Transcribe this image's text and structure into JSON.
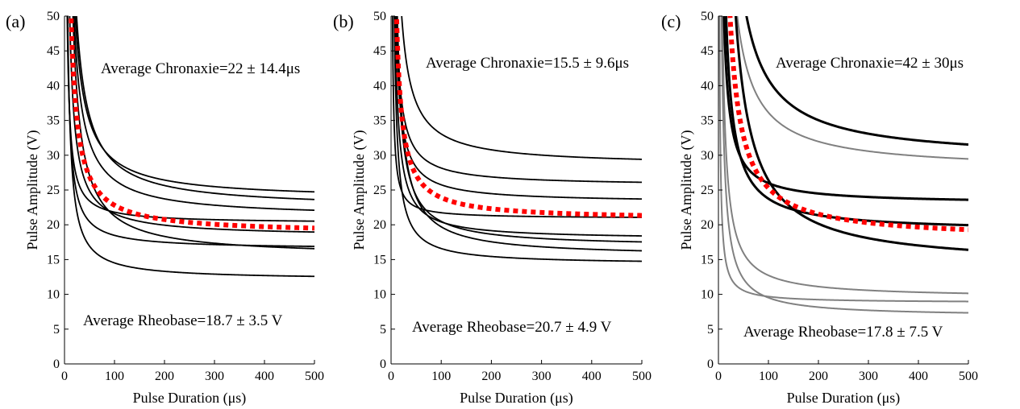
{
  "chart_data": [
    {
      "type": "line",
      "panel_label": "(a)",
      "xlabel": "Pulse Duration (μs)",
      "ylabel": "Pulse Amplitude (V)",
      "xlim": [
        0,
        500
      ],
      "ylim": [
        0,
        50
      ],
      "xticks": [
        0,
        100,
        200,
        300,
        400,
        500
      ],
      "yticks": [
        0,
        5,
        10,
        15,
        20,
        25,
        30,
        35,
        40,
        45,
        50
      ],
      "grid": false,
      "annotations": {
        "chronaxie": "Average Chronaxie=22 ± 14.4μs",
        "rheobase": "Average Rheobase=18.7 ± 3.5 V"
      },
      "series": [
        {
          "style": "thin-black",
          "rheobase": 23.6,
          "chronaxie": 24
        },
        {
          "style": "thin-black",
          "rheobase": 22.3,
          "chronaxie": 30
        },
        {
          "style": "thin-black",
          "rheobase": 21.0,
          "chronaxie": 26
        },
        {
          "style": "thin-black",
          "rheobase": 20.2,
          "chronaxie": 8
        },
        {
          "style": "thin-black",
          "rheobase": 18.3,
          "chronaxie": 18
        },
        {
          "style": "thin-black",
          "rheobase": 16.5,
          "chronaxie": 12
        },
        {
          "style": "thin-black",
          "rheobase": 15.4,
          "chronaxie": 38
        },
        {
          "style": "thin-black",
          "rheobase": 12.1,
          "chronaxie": 20
        },
        {
          "style": "red-dotted",
          "rheobase": 18.7,
          "chronaxie": 22
        }
      ]
    },
    {
      "type": "line",
      "panel_label": "(b)",
      "xlabel": "Pulse Duration (μs)",
      "ylabel": "Pulse Amplitude (V)",
      "xlim": [
        0,
        500
      ],
      "ylim": [
        0,
        50
      ],
      "xticks": [
        0,
        100,
        200,
        300,
        400,
        500
      ],
      "yticks": [
        0,
        5,
        10,
        15,
        20,
        25,
        30,
        35,
        40,
        45,
        50
      ],
      "grid": false,
      "annotations": {
        "chronaxie": "Average Chronaxie=15.5 ± 9.6μs",
        "rheobase": "Average Rheobase=20.7 ± 4.9 V"
      },
      "series": [
        {
          "style": "thin-black",
          "rheobase": 28.5,
          "chronaxie": 16
        },
        {
          "style": "thin-black",
          "rheobase": 25.6,
          "chronaxie": 10
        },
        {
          "style": "thin-black",
          "rheobase": 23.2,
          "chronaxie": 11
        },
        {
          "style": "thin-black",
          "rheobase": 20.9,
          "chronaxie": 4
        },
        {
          "style": "thin-black",
          "rheobase": 17.9,
          "chronaxie": 14
        },
        {
          "style": "thin-black",
          "rheobase": 16.8,
          "chronaxie": 22
        },
        {
          "style": "thin-black",
          "rheobase": 15.4,
          "chronaxie": 28
        },
        {
          "style": "thin-black",
          "rheobase": 14.3,
          "chronaxie": 16
        },
        {
          "style": "red-dotted",
          "rheobase": 20.7,
          "chronaxie": 15.5
        }
      ]
    },
    {
      "type": "line",
      "panel_label": "(c)",
      "xlabel": "Pulse Duration (μs)",
      "ylabel": "Pulse Amplitude (V)",
      "xlim": [
        0,
        500
      ],
      "ylim": [
        0,
        50
      ],
      "xticks": [
        0,
        100,
        200,
        300,
        400,
        500
      ],
      "yticks": [
        0,
        5,
        10,
        15,
        20,
        25,
        30,
        35,
        40,
        45,
        50
      ],
      "grid": false,
      "annotations": {
        "chronaxie": "Average Chronaxie=42 ± 30μs",
        "rheobase": "Average Rheobase=17.8 ± 7.5 V"
      },
      "series": [
        {
          "style": "gray",
          "rheobase": 27.8,
          "chronaxie": 30
        },
        {
          "style": "gray",
          "rheobase": 9.5,
          "chronaxie": 34
        },
        {
          "style": "gray",
          "rheobase": 8.8,
          "chronaxie": 10
        },
        {
          "style": "gray",
          "rheobase": 6.8,
          "chronaxie": 40
        },
        {
          "style": "thick-black",
          "rheobase": 29.2,
          "chronaxie": 40
        },
        {
          "style": "thick-black",
          "rheobase": 23.0,
          "chronaxie": 13
        },
        {
          "style": "thick-black",
          "rheobase": 19.0,
          "chronaxie": 25
        },
        {
          "style": "thick-black",
          "rheobase": 13.9,
          "chronaxie": 90
        },
        {
          "style": "red-dotted",
          "rheobase": 17.8,
          "chronaxie": 42
        }
      ]
    }
  ],
  "colors": {
    "black": "#000000",
    "gray": "#808080",
    "red": "#ff0000"
  }
}
